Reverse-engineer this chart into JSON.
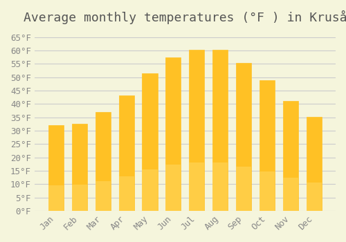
{
  "title": "Average monthly temperatures (°F ) in Kruså",
  "months": [
    "Jan",
    "Feb",
    "Mar",
    "Apr",
    "May",
    "Jun",
    "Jul",
    "Aug",
    "Sep",
    "Oct",
    "Nov",
    "Dec"
  ],
  "values": [
    32.2,
    32.7,
    37.0,
    43.3,
    51.5,
    57.5,
    60.2,
    60.2,
    55.4,
    49.0,
    41.2,
    35.2
  ],
  "bar_color_top": "#FFC125",
  "bar_color_bottom": "#FFD966",
  "bar_edge_color": "#FFA500",
  "background_color": "#F5F5DC",
  "grid_color": "#CCCCCC",
  "ylim": [
    0,
    68
  ],
  "yticks": [
    0,
    5,
    10,
    15,
    20,
    25,
    30,
    35,
    40,
    45,
    50,
    55,
    60,
    65
  ],
  "title_fontsize": 13,
  "tick_fontsize": 9,
  "font_family": "monospace"
}
